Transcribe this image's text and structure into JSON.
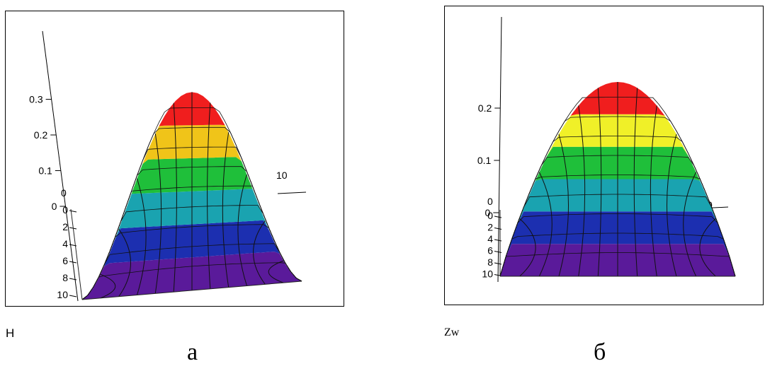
{
  "chart_data": [
    {
      "type": "surface3d",
      "function_label": "H",
      "caption": "а",
      "z_ticks": [
        "0.3",
        "0.2",
        "0.1",
        "0"
      ],
      "y_ticks": [
        "0",
        "2",
        "4",
        "6",
        "8",
        "10"
      ],
      "x_ticks": [
        "0",
        "10"
      ],
      "z_range": [
        0,
        0.32
      ],
      "x_range": [
        0,
        10
      ],
      "y_range": [
        0,
        10
      ],
      "peak": 0.32,
      "color_bands": [
        "#5a1a9a",
        "#1c2fb0",
        "#1aa3b0",
        "#1fbf3a",
        "#f0c419",
        "#f01e1e"
      ]
    },
    {
      "type": "surface3d",
      "function_label": "Zw",
      "caption": "б",
      "z_ticks": [
        "0.2",
        "0.1",
        "0"
      ],
      "y_ticks": [
        "0",
        "2",
        "4",
        "6",
        "8",
        "10"
      ],
      "x_ticks": [
        "0",
        "0"
      ],
      "z_range": [
        0,
        0.25
      ],
      "x_range": [
        0,
        10
      ],
      "y_range": [
        0,
        10
      ],
      "peak": 0.25,
      "color_bands": [
        "#5a1a9a",
        "#1c2fb0",
        "#1aa3b0",
        "#1fbf3a",
        "#f0f028",
        "#f01e1e"
      ]
    }
  ]
}
